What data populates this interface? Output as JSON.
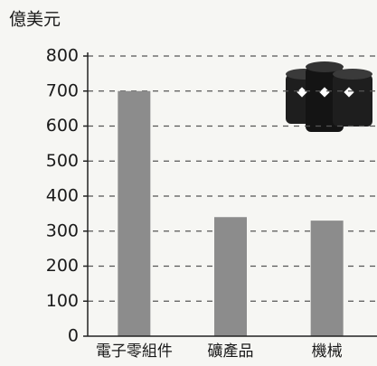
{
  "chart_data": {
    "type": "bar",
    "y_label": "億美元",
    "categories": [
      "電子零組件",
      "礦產品",
      "機械"
    ],
    "values": [
      700,
      340,
      330
    ],
    "color": "#8c8c8c",
    "ylim": [
      0,
      800
    ],
    "yticks": [
      0,
      100,
      200,
      300,
      400,
      500,
      600,
      700,
      800
    ],
    "grid": true
  }
}
